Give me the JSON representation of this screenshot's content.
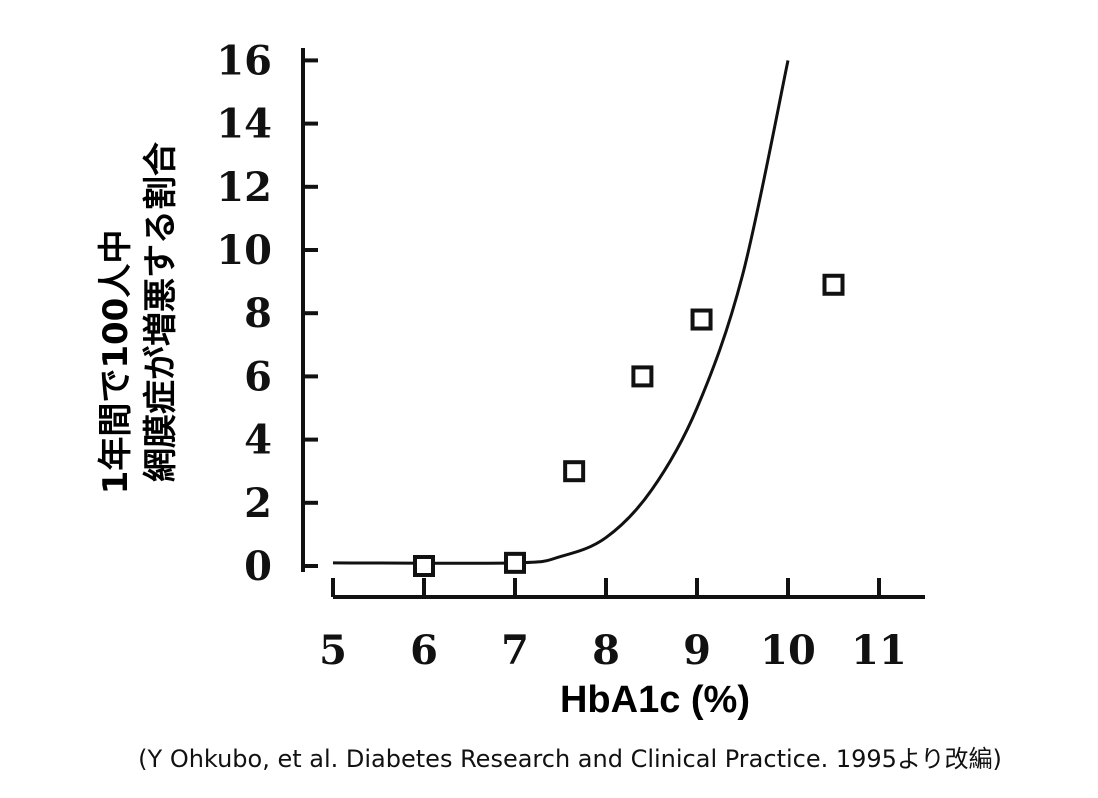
{
  "chart_data": {
    "type": "scatter",
    "xlabel": "HbA1c (%)",
    "ylabel_lines": [
      "1年間で100人中",
      "網膜症が増悪する割合"
    ],
    "x_ticks": [
      5,
      6,
      7,
      8,
      9,
      10,
      11
    ],
    "y_ticks": [
      0,
      2,
      4,
      6,
      8,
      10,
      12,
      14,
      16
    ],
    "xlim": [
      5,
      11.5
    ],
    "ylim": [
      0,
      16
    ],
    "grid": false,
    "points": [
      {
        "x": 6.0,
        "y": 0.0
      },
      {
        "x": 7.0,
        "y": 0.1
      },
      {
        "x": 7.65,
        "y": 3.0
      },
      {
        "x": 8.4,
        "y": 6.0
      },
      {
        "x": 9.05,
        "y": 7.8
      },
      {
        "x": 10.5,
        "y": 8.9
      }
    ],
    "fitted_curve": [
      {
        "x": 5.0,
        "y": 0.1
      },
      {
        "x": 7.0,
        "y": 0.1
      },
      {
        "x": 7.5,
        "y": 0.3
      },
      {
        "x": 8.0,
        "y": 0.9
      },
      {
        "x": 8.5,
        "y": 2.4
      },
      {
        "x": 9.0,
        "y": 5.0
      },
      {
        "x": 9.5,
        "y": 9.2
      },
      {
        "x": 10.0,
        "y": 16.0
      }
    ],
    "caption": "(Y Ohkubo, et al. Diabetes Research and Clinical Practice. 1995より改編)"
  }
}
